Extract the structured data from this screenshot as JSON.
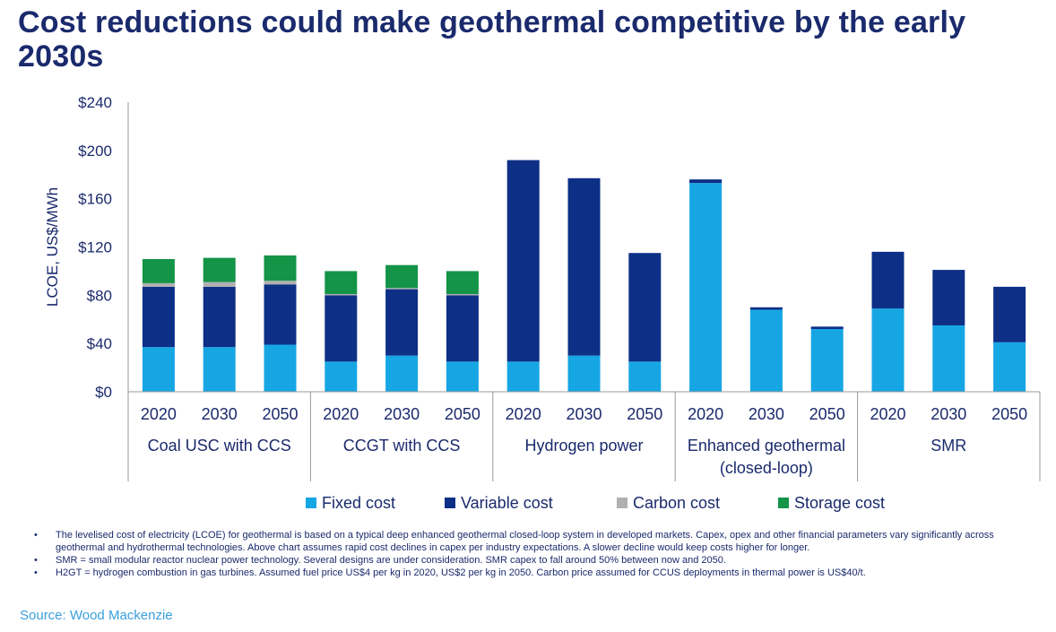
{
  "title": "Cost reductions could make geothermal competitive by the early 2030s",
  "notes": [
    "The levelised cost of electricity (LCOE) for geothermal is based on a typical deep enhanced geothermal closed-loop system in developed markets. Capex, opex and other financial parameters vary significantly across geothermal and hydrothermal technologies. Above chart assumes rapid cost declines in capex per industry expectations. A slower decline would keep costs higher for longer.",
    "SMR = small modular reactor nuclear power technology. Several designs are under consideration. SMR capex to fall around 50% between now and 2050.",
    "H2GT = hydrogen combustion in gas turbines. Assumed fuel price US$4 per kg in 2020, US$2 per kg in 2050. Carbon price assumed for CCUS deployments in thermal power is US$40/t."
  ],
  "source": "Source: Wood Mackenzie",
  "chart_data": {
    "type": "bar",
    "stacked": true,
    "ylabel": "LCOE, US$/MWh",
    "ylim": [
      0,
      240
    ],
    "yticks": [
      "$0",
      "$40",
      "$80",
      "$120",
      "$160",
      "$200",
      "$240"
    ],
    "grid": false,
    "legend_position": "bottom",
    "groups": [
      {
        "label": [
          "Coal USC with CCS"
        ],
        "categories": [
          "2020",
          "2030",
          "2050"
        ]
      },
      {
        "label": [
          "CCGT with CCS"
        ],
        "categories": [
          "2020",
          "2030",
          "2050"
        ]
      },
      {
        "label": [
          "Hydrogen power"
        ],
        "categories": [
          "2020",
          "2030",
          "2050"
        ]
      },
      {
        "label": [
          "Enhanced geothermal",
          "(closed-loop)"
        ],
        "categories": [
          "2020",
          "2030",
          "2050"
        ]
      },
      {
        "label": [
          "SMR"
        ],
        "categories": [
          "2020",
          "2030",
          "2050"
        ]
      }
    ],
    "series": [
      {
        "name": "Fixed cost",
        "color": "#16a6e4",
        "values": [
          37,
          37,
          39,
          25,
          30,
          25,
          25,
          30,
          25,
          173,
          68,
          52,
          69,
          55,
          41
        ]
      },
      {
        "name": "Variable cost",
        "color": "#0d2f86",
        "values": [
          50,
          50,
          50,
          55,
          55,
          55,
          167,
          147,
          90,
          3,
          2,
          2,
          47,
          46,
          46
        ]
      },
      {
        "name": "Carbon cost",
        "color": "#b0b0b0",
        "values": [
          3,
          4,
          3,
          1,
          1,
          1,
          0,
          0,
          0,
          0,
          0,
          0,
          0,
          0,
          0
        ]
      },
      {
        "name": "Storage cost",
        "color": "#139447",
        "values": [
          20,
          20,
          21,
          19,
          19,
          19,
          0,
          0,
          0,
          0,
          0,
          0,
          0,
          0,
          0
        ]
      }
    ]
  }
}
